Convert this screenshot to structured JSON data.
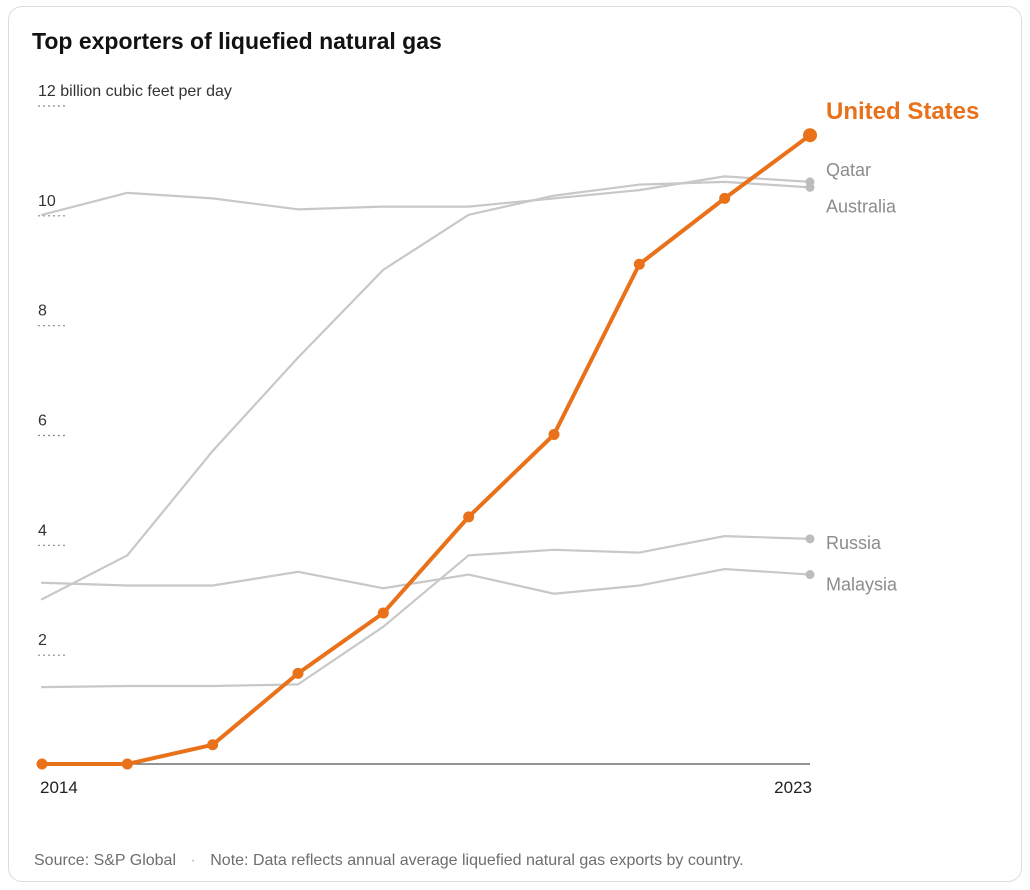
{
  "title": "Top exporters of liquefied natural gas",
  "footer": {
    "source": "Source: S&P Global",
    "separator": "·",
    "note": "Note: Data reflects annual average liquefied natural gas exports by country."
  },
  "chart_data": {
    "type": "line",
    "ylabel": "12 billion cubic feet per day",
    "y_ticks": [
      {
        "value": 12,
        "label": "12 billion cubic feet per day"
      },
      {
        "value": 10,
        "label": "10"
      },
      {
        "value": 8,
        "label": "8"
      },
      {
        "value": 6,
        "label": "6"
      },
      {
        "value": 4,
        "label": "4"
      },
      {
        "value": 2,
        "label": "2"
      }
    ],
    "x_tick_labels": [
      {
        "value": 2014,
        "label": "2014"
      },
      {
        "value": 2023,
        "label": "2023"
      }
    ],
    "xlim": [
      2014,
      2023
    ],
    "ylim": [
      0,
      12
    ],
    "grid": false,
    "x": [
      2014,
      2015,
      2016,
      2017,
      2018,
      2019,
      2020,
      2021,
      2022,
      2023
    ],
    "series": [
      {
        "name": "Qatar",
        "color": "#c8c8c8",
        "highlight": false,
        "values": [
          10.0,
          10.4,
          10.3,
          10.1,
          10.15,
          10.15,
          10.3,
          10.45,
          10.7,
          10.6
        ]
      },
      {
        "name": "Australia",
        "color": "#c8c8c8",
        "highlight": false,
        "values": [
          3.0,
          3.8,
          5.7,
          7.4,
          9.0,
          10.0,
          10.35,
          10.55,
          10.6,
          10.5
        ]
      },
      {
        "name": "Russia",
        "color": "#c8c8c8",
        "highlight": false,
        "values": [
          1.4,
          1.42,
          1.42,
          1.45,
          2.5,
          3.8,
          3.9,
          3.85,
          4.15,
          4.1
        ]
      },
      {
        "name": "Malaysia",
        "color": "#c8c8c8",
        "highlight": false,
        "values": [
          3.3,
          3.25,
          3.25,
          3.5,
          3.2,
          3.45,
          3.1,
          3.25,
          3.55,
          3.45
        ]
      },
      {
        "name": "United States",
        "color": "#e8711a",
        "highlight": true,
        "values": [
          0.0,
          0.0,
          0.35,
          1.65,
          2.75,
          4.5,
          6.0,
          9.1,
          10.3,
          11.45
        ]
      }
    ]
  }
}
